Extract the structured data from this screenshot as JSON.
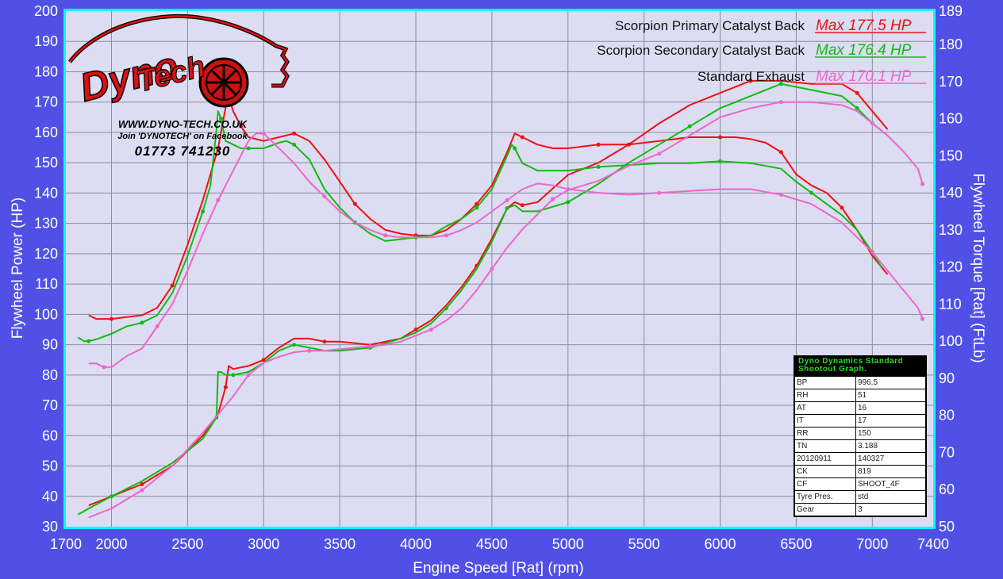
{
  "chart_data": {
    "type": "line",
    "xlabel": "Engine Speed [Rat] (rpm)",
    "ylabel": "Flywheel Power (HP)",
    "y2label": "Flywheel Torque [Rat] (FtLb)",
    "xlim": [
      1700,
      7400
    ],
    "ylim": [
      30,
      200
    ],
    "y2lim": [
      50,
      189
    ],
    "x_ticks": [
      1700,
      2000,
      2500,
      3000,
      3500,
      4000,
      4500,
      5000,
      5500,
      6000,
      6500,
      7000,
      7400
    ],
    "y_ticks": [
      30,
      40,
      50,
      60,
      70,
      80,
      90,
      100,
      110,
      120,
      130,
      140,
      150,
      160,
      170,
      180,
      190,
      200
    ],
    "y2_ticks": [
      50,
      60,
      70,
      80,
      90,
      100,
      110,
      120,
      130,
      140,
      150,
      160,
      170,
      180,
      189
    ],
    "grid": true,
    "legend_position": "top-right",
    "colors": {
      "primary": "#ee1111",
      "secondary": "#11bb11",
      "standard": "#ee66cc"
    },
    "series": [
      {
        "name": "Scorpion Primary Catalyst Back",
        "max_label": "Max 177.5 HP",
        "color": "#ee1111",
        "power": {
          "x": [
            1850,
            2000,
            2200,
            2400,
            2600,
            2700,
            2750,
            2770,
            2800,
            2900,
            3000,
            3100,
            3200,
            3300,
            3400,
            3500,
            3700,
            3900,
            4000,
            4100,
            4200,
            4300,
            4400,
            4500,
            4600,
            4650,
            4700,
            4800,
            5000,
            5200,
            5400,
            5600,
            5800,
            6000,
            6200,
            6400,
            6600,
            6800,
            6900,
            7000,
            7100
          ],
          "y": [
            37,
            40,
            44,
            50,
            60,
            67,
            76,
            83,
            82,
            83,
            85,
            89,
            92,
            92,
            91,
            91,
            90,
            92,
            95,
            98,
            103,
            109,
            116,
            125,
            135,
            137,
            136,
            137,
            146,
            150,
            156,
            163,
            169,
            173,
            177,
            177,
            176,
            176,
            173,
            167,
            161
          ]
        },
        "torque": {
          "x": [
            1850,
            1900,
            2000,
            2100,
            2200,
            2300,
            2400,
            2500,
            2600,
            2650,
            2700,
            2750,
            2770,
            2800,
            2850,
            2900,
            3000,
            3100,
            3200,
            3300,
            3400,
            3500,
            3600,
            3700,
            3800,
            3900,
            4000,
            4100,
            4200,
            4300,
            4400,
            4500,
            4600,
            4650,
            4700,
            4800,
            4900,
            5000,
            5200,
            5400,
            5600,
            5800,
            6000,
            6100,
            6200,
            6300,
            6400,
            6500,
            6600,
            6700,
            6800,
            6900,
            7000,
            7100
          ],
          "y": [
            107,
            106,
            106,
            106.5,
            107,
            109,
            115,
            126,
            138,
            145,
            152,
            163,
            166,
            162,
            158,
            155,
            154,
            155,
            156,
            154,
            149,
            143,
            137,
            133,
            130,
            129,
            128.5,
            128.5,
            130,
            133,
            137,
            142,
            151,
            156,
            155,
            153,
            152,
            152,
            153,
            153,
            154,
            155,
            155,
            155,
            154.5,
            153.5,
            151,
            145,
            142,
            140,
            136,
            130,
            123,
            118
          ]
        }
      },
      {
        "name": "Scorpion Secondary Catalyst Back",
        "max_label": "Max 176.4 HP",
        "color": "#11bb11",
        "power": {
          "x": [
            1780,
            1850,
            2000,
            2200,
            2400,
            2600,
            2690,
            2700,
            2720,
            2750,
            2800,
            2900,
            3000,
            3100,
            3200,
            3300,
            3400,
            3500,
            3700,
            3900,
            4000,
            4100,
            4200,
            4300,
            4400,
            4500,
            4600,
            4650,
            4700,
            4800,
            5000,
            5200,
            5400,
            5600,
            5800,
            6000,
            6200,
            6300,
            6400,
            6500,
            6600,
            6800,
            6900,
            7000,
            7100
          ],
          "y": [
            34,
            36,
            40,
            45,
            51,
            59,
            66,
            81,
            81,
            80,
            80,
            81,
            84,
            88,
            90,
            89,
            88,
            88,
            89,
            92,
            94,
            97,
            102,
            108,
            115,
            124,
            135,
            136,
            134,
            134,
            137,
            143,
            150,
            156,
            162,
            168,
            172,
            174,
            176,
            175,
            174,
            172,
            168,
            163,
            159
          ]
        },
        "torque": {
          "x": [
            1780,
            1820,
            1850,
            1900,
            2000,
            2100,
            2200,
            2300,
            2400,
            2500,
            2600,
            2650,
            2690,
            2700,
            2720,
            2750,
            2800,
            2850,
            2900,
            3000,
            3100,
            3150,
            3200,
            3300,
            3400,
            3500,
            3600,
            3700,
            3800,
            3900,
            4000,
            4100,
            4200,
            4300,
            4400,
            4500,
            4600,
            4630,
            4650,
            4700,
            4800,
            5000,
            5200,
            5400,
            5600,
            5800,
            6000,
            6200,
            6400,
            6500,
            6600,
            6700,
            6800,
            6900,
            7000,
            7060
          ],
          "y": [
            101,
            100,
            100,
            100.5,
            102,
            104,
            105,
            107,
            113,
            123,
            135,
            142,
            157,
            162,
            160,
            154,
            153,
            152,
            152,
            152,
            153.5,
            154,
            153,
            149,
            141,
            136,
            132,
            129,
            127,
            127.5,
            128,
            128.5,
            131,
            133,
            136,
            141,
            150,
            153,
            152,
            148,
            146,
            146,
            147,
            147.5,
            148,
            148,
            148.5,
            148,
            146.5,
            143,
            140,
            137,
            134,
            130,
            124,
            120
          ]
        }
      },
      {
        "name": "Standard Exhaust",
        "max_label": "Max 170.1 HP",
        "color": "#ee66cc",
        "power": {
          "x": [
            1850,
            2000,
            2200,
            2400,
            2600,
            2800,
            2900,
            3000,
            3100,
            3200,
            3300,
            3400,
            3500,
            3600,
            3700,
            3800,
            3900,
            4000,
            4100,
            4200,
            4300,
            4400,
            4500,
            4600,
            4700,
            4800,
            4900,
            5000,
            5200,
            5400,
            5600,
            5800,
            6000,
            6200,
            6400,
            6600,
            6800,
            6900,
            7000,
            7100,
            7200,
            7300,
            7330
          ],
          "y": [
            33,
            36,
            42,
            50,
            61,
            73,
            80,
            84,
            86,
            87.5,
            88,
            88,
            88.5,
            89,
            89.5,
            90,
            91,
            93,
            95,
            98,
            102,
            108,
            115,
            122,
            128,
            133,
            138,
            141,
            144,
            149,
            153,
            159,
            165,
            168,
            170,
            170,
            169,
            167,
            163,
            159,
            154,
            148,
            143
          ]
        },
        "torque": {
          "x": [
            1850,
            1900,
            1950,
            2000,
            2100,
            2200,
            2300,
            2400,
            2500,
            2600,
            2700,
            2800,
            2900,
            2950,
            3000,
            3100,
            3200,
            3300,
            3400,
            3500,
            3600,
            3700,
            3800,
            3900,
            4000,
            4100,
            4200,
            4300,
            4400,
            4500,
            4600,
            4700,
            4800,
            4900,
            5000,
            5100,
            5200,
            5400,
            5600,
            5800,
            6000,
            6200,
            6400,
            6600,
            6800,
            6900,
            7000,
            7100,
            7200,
            7300,
            7330
          ],
          "y": [
            94,
            94,
            93,
            93,
            96,
            98,
            104,
            110,
            119,
            129,
            138,
            146,
            154,
            156,
            156,
            152,
            148,
            143,
            139,
            135,
            132,
            130,
            128.5,
            128,
            128,
            128,
            128.5,
            130,
            132,
            135,
            138,
            141,
            142.5,
            142,
            141,
            140.5,
            140,
            139.5,
            140,
            140.5,
            141,
            141,
            139.5,
            137,
            132,
            128,
            124,
            119,
            114,
            109,
            106
          ]
        }
      }
    ]
  },
  "legend": [
    {
      "label": "Scorpion Primary Catalyst Back",
      "max": "Max 177.5 HP",
      "color": "#ee1111"
    },
    {
      "label": "Scorpion Secondary Catalyst Back",
      "max": "Max 176.4 HP",
      "color": "#11bb11"
    },
    {
      "label": "Standard Exhaust",
      "max": "Max 170.1 HP",
      "color": "#ee66cc"
    }
  ],
  "info_box": {
    "title_line1": "Dyno Dynamics Standard",
    "title_line2": "Shootout Graph.",
    "rows": [
      {
        "key": "BP",
        "value": "996.5"
      },
      {
        "key": "RH",
        "value": "51"
      },
      {
        "key": "AT",
        "value": "16"
      },
      {
        "key": "IT",
        "value": "17"
      },
      {
        "key": "RR",
        "value": "150"
      },
      {
        "key": "TN",
        "value": "3.188"
      },
      {
        "key": "20120911",
        "value": "140327"
      },
      {
        "key": "CK",
        "value": "819"
      },
      {
        "key": "CF",
        "value": "SHOOT_4F"
      },
      {
        "key": "Tyre Pres.",
        "value": "std"
      },
      {
        "key": "Gear",
        "value": "3"
      }
    ]
  },
  "branding": {
    "logo_text_1": "Dyno",
    "logo_text_2": "Tech",
    "website": "WWW.DYNO-TECH.CO.UK",
    "facebook": "Join 'DYNOTECH' on Facebook",
    "phone": "01773 741230"
  }
}
